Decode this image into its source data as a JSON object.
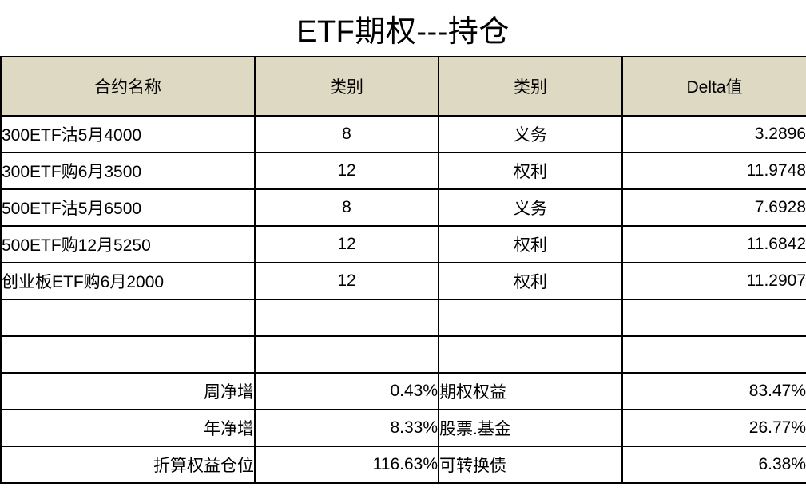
{
  "title": "ETF期权---持仓",
  "table": {
    "headers": [
      "合约名称",
      "类别",
      "类别",
      "Delta值"
    ],
    "rows": [
      {
        "name": "300ETF沽5月4000",
        "qty": "8",
        "type": "义务",
        "delta": "3.2896"
      },
      {
        "name": "300ETF购6月3500",
        "qty": "12",
        "type": "权利",
        "delta": "11.9748"
      },
      {
        "name": "500ETF沽5月6500",
        "qty": "8",
        "type": "义务",
        "delta": "7.6928"
      },
      {
        "name": "500ETF购12月5250",
        "qty": "12",
        "type": "权利",
        "delta": "11.6842"
      },
      {
        "name": "创业板ETF购6月2000",
        "qty": "12",
        "type": "权利",
        "delta": "11.2907"
      }
    ],
    "summary": [
      {
        "label_left": "周净增",
        "value_left": "0.43%",
        "label_right": "期权权益",
        "value_right": "83.47%"
      },
      {
        "label_left": "年净增",
        "value_left": "8.33%",
        "label_right": "股票.基金",
        "value_right": "26.77%"
      },
      {
        "label_left": "折算权益仓位",
        "value_left": "116.63%",
        "label_right": "可转换债",
        "value_right": "6.38%"
      }
    ]
  },
  "colors": {
    "header_bg": "#DDD9C3",
    "border": "#000000",
    "text": "#000000",
    "background": "#FFFFFF"
  },
  "chart_data": {
    "type": "table",
    "title": "ETF期权---持仓",
    "columns": [
      "合约名称",
      "类别",
      "类别",
      "Delta值"
    ],
    "rows": [
      [
        "300ETF沽5月4000",
        8,
        "义务",
        3.2896
      ],
      [
        "300ETF购6月3500",
        12,
        "权利",
        11.9748
      ],
      [
        "500ETF沽5月6500",
        8,
        "义务",
        7.6928
      ],
      [
        "500ETF购12月5250",
        12,
        "权利",
        11.6842
      ],
      [
        "创业板ETF购6月2000",
        12,
        "权利",
        11.2907
      ]
    ],
    "summary_stats": [
      {
        "label": "周净增",
        "value_pct": 0.43
      },
      {
        "label": "年净增",
        "value_pct": 8.33
      },
      {
        "label": "折算权益仓位",
        "value_pct": 116.63
      },
      {
        "label": "期权权益",
        "value_pct": 83.47
      },
      {
        "label": "股票.基金",
        "value_pct": 26.77
      },
      {
        "label": "可转换债",
        "value_pct": 6.38
      }
    ],
    "layout": {
      "header_fill": "#DDD9C3",
      "grid": true,
      "empty_rows_between_data_and_summary": 2
    }
  }
}
